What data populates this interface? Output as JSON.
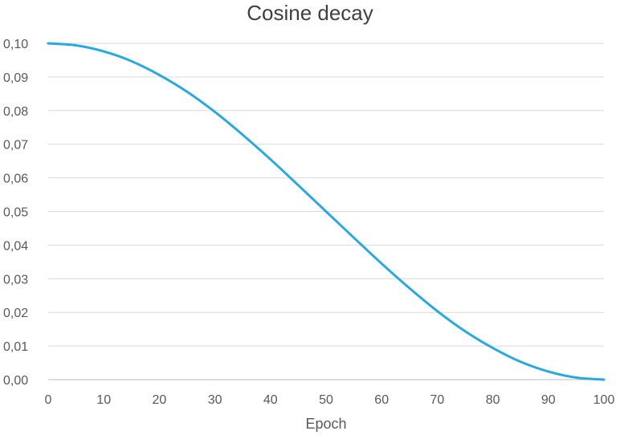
{
  "chart_data": {
    "type": "line",
    "title": "Cosine decay",
    "xlabel": "Epoch",
    "ylabel": "",
    "xlim": [
      0,
      100
    ],
    "ylim": [
      0,
      0.1
    ],
    "grid": "horizontal",
    "legend": "none",
    "x_ticks": [
      "0",
      "10",
      "20",
      "30",
      "40",
      "50",
      "60",
      "70",
      "80",
      "90",
      "100"
    ],
    "y_ticks": [
      "0,00",
      "0,01",
      "0,02",
      "0,03",
      "0,04",
      "0,05",
      "0,06",
      "0,07",
      "0,08",
      "0,09",
      "0,10"
    ],
    "x": [
      0,
      5,
      10,
      15,
      20,
      25,
      30,
      35,
      40,
      45,
      50,
      55,
      60,
      65,
      70,
      75,
      80,
      85,
      90,
      95,
      100
    ],
    "series": [
      {
        "values": [
          0.1,
          0.0994,
          0.0976,
          0.0947,
          0.0906,
          0.0856,
          0.0796,
          0.0728,
          0.0655,
          0.0578,
          0.05,
          0.0422,
          0.0345,
          0.0272,
          0.0204,
          0.0144,
          0.0094,
          0.0053,
          0.0024,
          0.0006,
          0.0
        ]
      }
    ],
    "colors": {
      "line": "#2aa8e0",
      "grid": "#d9d9d9",
      "axis": "#bfbfbf"
    }
  }
}
